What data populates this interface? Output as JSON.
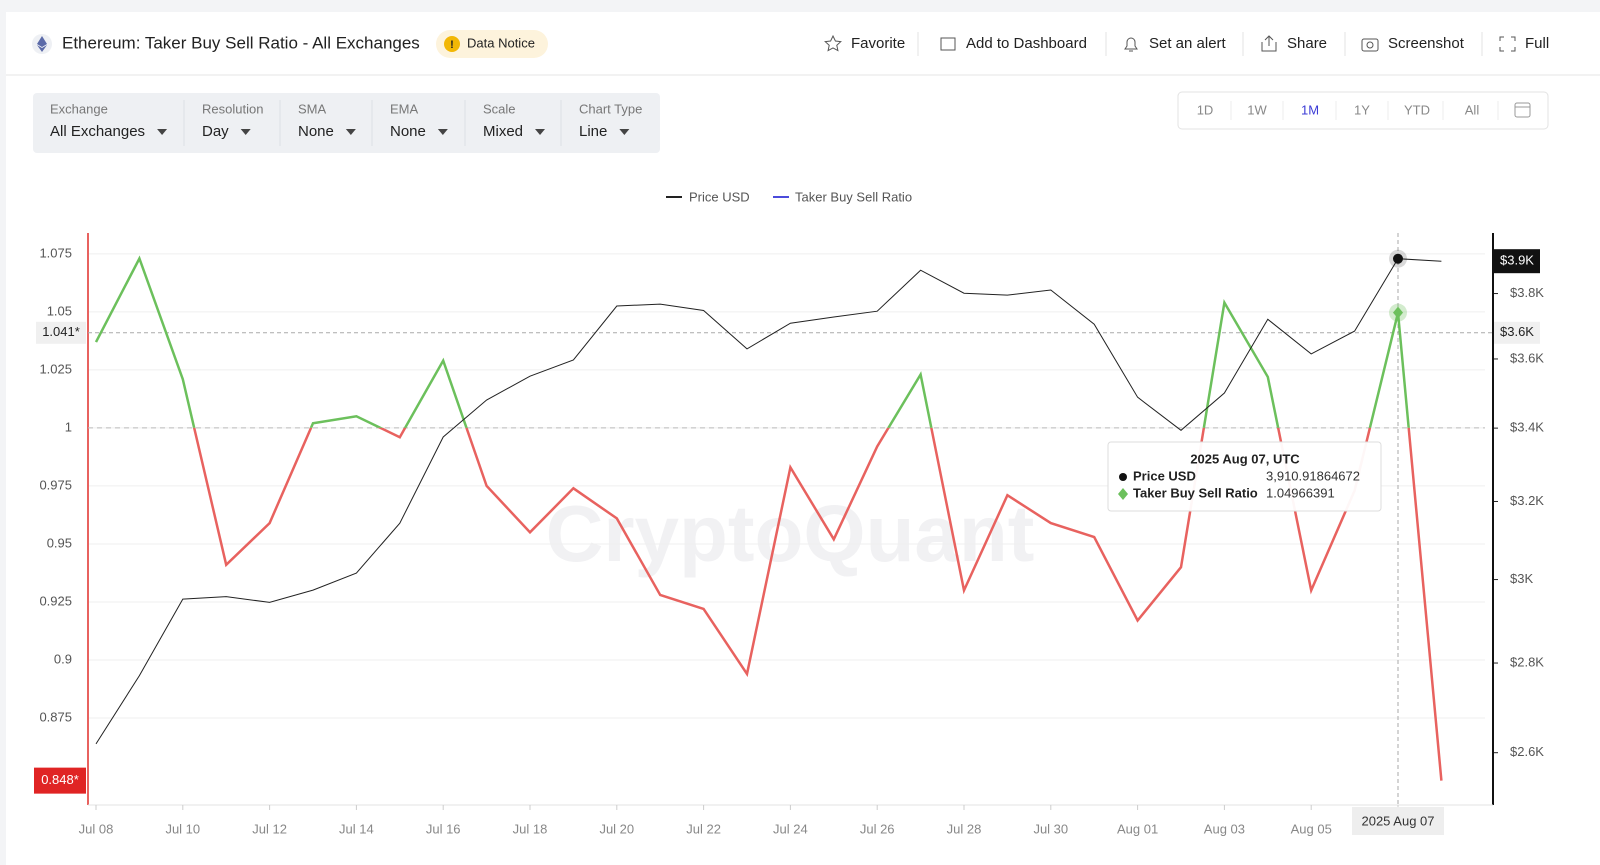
{
  "header": {
    "title": "Ethereum: Taker Buy Sell Ratio - All Exchanges",
    "notice": "Data Notice",
    "actions": [
      "Favorite",
      "Add to Dashboard",
      "Set an alert",
      "Share",
      "Screenshot",
      "Full"
    ]
  },
  "controls": [
    {
      "label": "Exchange",
      "value": "All Exchanges"
    },
    {
      "label": "Resolution",
      "value": "Day"
    },
    {
      "label": "SMA",
      "value": "None"
    },
    {
      "label": "EMA",
      "value": "None"
    },
    {
      "label": "Scale",
      "value": "Mixed"
    },
    {
      "label": "Chart Type",
      "value": "Line"
    }
  ],
  "ranges": {
    "options": [
      "1D",
      "1W",
      "1M",
      "1Y",
      "YTD",
      "All"
    ],
    "active": "1M"
  },
  "chart_data": {
    "type": "line",
    "watermark": "CryptoQuant",
    "categories": [
      "Jul 08",
      null,
      "Jul 10",
      null,
      "Jul 12",
      null,
      "Jul 14",
      null,
      "Jul 16",
      null,
      "Jul 18",
      null,
      "Jul 20",
      null,
      "Jul 22",
      null,
      "Jul 24",
      null,
      "Jul 26",
      null,
      "Jul 28",
      null,
      "Jul 30",
      null,
      "Aug 01",
      null,
      "Aug 03",
      null,
      "Aug 05",
      null,
      "2025 Aug 07",
      null
    ],
    "highlight_index": 30,
    "series": [
      {
        "name": "Price USD",
        "color": "#222222",
        "axis": "y2",
        "values": [
          2619,
          2771,
          2952,
          2958,
          2944,
          2974,
          3016,
          3143,
          3375,
          3480,
          3549,
          3597,
          3761,
          3767,
          3747,
          3630,
          3708,
          3727,
          3745,
          3874,
          3801,
          3795,
          3811,
          3705,
          3488,
          3394,
          3500,
          3720,
          3615,
          3684,
          3910.91864672,
          3903
        ]
      },
      {
        "name": "Taker Buy Sell Ratio",
        "color": "#4b4bdb",
        "above_color": "#6cc05c",
        "below_color": "#e8625f",
        "threshold": 1,
        "values": [
          1.037,
          1.073,
          1.021,
          0.941,
          0.959,
          1.002,
          1.005,
          0.996,
          1.029,
          0.975,
          0.955,
          0.974,
          0.961,
          0.928,
          0.922,
          0.894,
          0.983,
          0.952,
          0.992,
          1.023,
          0.93,
          0.971,
          0.959,
          0.953,
          0.917,
          0.94,
          1.054,
          1.022,
          0.93,
          0.973,
          1.04966391,
          0.848
        ]
      }
    ],
    "ylim": [
      0.8375,
      1.084
    ],
    "yticks": [
      0.875,
      0.9,
      0.925,
      0.95,
      0.975,
      1,
      1.025,
      1.05,
      1.075
    ],
    "y2lim": [
      2490,
      3995
    ],
    "y2scale": "log",
    "y2ticks": [
      {
        "value": 2600,
        "label": "$2.6K"
      },
      {
        "value": 2800,
        "label": "$2.8K"
      },
      {
        "value": 3000,
        "label": "$3K"
      },
      {
        "value": 3200,
        "label": "$3.2K"
      },
      {
        "value": 3400,
        "label": "$3.4K"
      },
      {
        "value": 3600,
        "label": "$3.6K"
      },
      {
        "value": 3800,
        "label": "$3.8K"
      }
    ],
    "grid": true,
    "last_labels": {
      "y": "0.848*",
      "y2": "$3.9K"
    },
    "crosshair": {
      "value": 1.041,
      "label": "1.041*",
      "y2_label": "$3.6K"
    },
    "tooltip": {
      "title": "2025 Aug 07, UTC",
      "price_label": "3,910.91864672",
      "ratio_label": "1.04966391"
    }
  }
}
